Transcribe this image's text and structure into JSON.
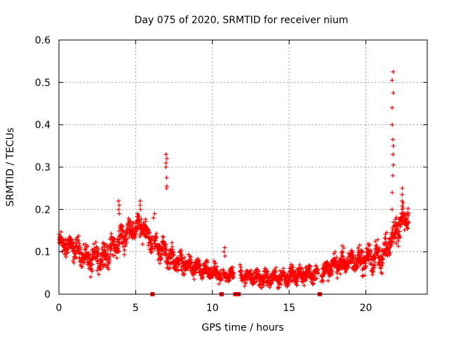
{
  "chart_data": {
    "type": "scatter",
    "title": "Day 075 of 2020, SRMTID for receiver nium",
    "xlabel": "GPS time / hours",
    "ylabel": "SRMTID / TECUs",
    "xlim": [
      0,
      24
    ],
    "ylim": [
      0,
      0.6
    ],
    "xticks": [
      0,
      5,
      10,
      15,
      20
    ],
    "xtick_labels": [
      "0",
      "5",
      "10",
      "15",
      "20"
    ],
    "yticks": [
      0,
      0.1,
      0.2,
      0.3,
      0.4,
      0.5,
      0.6
    ],
    "ytick_labels": [
      "0",
      "0.1",
      "0.2",
      "0.3",
      "0.4",
      "0.5",
      "0.6"
    ],
    "grid": true,
    "marker": "plus",
    "color": "#ff0000",
    "gap_markers_x": [
      6.1,
      10.6,
      11.5,
      11.7,
      17.0
    ],
    "segments": [
      {
        "x0": 0.0,
        "x1": 1.0,
        "y0": 0.12,
        "y1": 0.11,
        "spread": 0.035
      },
      {
        "x0": 1.0,
        "x1": 2.0,
        "y0": 0.11,
        "y1": 0.08,
        "spread": 0.035
      },
      {
        "x0": 2.0,
        "x1": 3.0,
        "y0": 0.08,
        "y1": 0.09,
        "spread": 0.04
      },
      {
        "x0": 3.0,
        "x1": 3.8,
        "y0": 0.09,
        "y1": 0.12,
        "spread": 0.04
      },
      {
        "x0": 3.8,
        "x1": 4.5,
        "y0": 0.12,
        "y1": 0.15,
        "spread": 0.04
      },
      {
        "x0": 4.5,
        "x1": 5.5,
        "y0": 0.15,
        "y1": 0.16,
        "spread": 0.035
      },
      {
        "x0": 5.5,
        "x1": 6.1,
        "y0": 0.16,
        "y1": 0.12,
        "spread": 0.035
      },
      {
        "x0": 6.2,
        "x1": 7.5,
        "y0": 0.12,
        "y1": 0.08,
        "spread": 0.035
      },
      {
        "x0": 7.5,
        "x1": 9.0,
        "y0": 0.08,
        "y1": 0.06,
        "spread": 0.03
      },
      {
        "x0": 9.0,
        "x1": 10.6,
        "y0": 0.06,
        "y1": 0.045,
        "spread": 0.025
      },
      {
        "x0": 10.7,
        "x1": 11.4,
        "y0": 0.045,
        "y1": 0.045,
        "spread": 0.02
      },
      {
        "x0": 11.8,
        "x1": 13.5,
        "y0": 0.045,
        "y1": 0.035,
        "spread": 0.025
      },
      {
        "x0": 13.5,
        "x1": 15.5,
        "y0": 0.035,
        "y1": 0.045,
        "spread": 0.025
      },
      {
        "x0": 15.5,
        "x1": 16.9,
        "y0": 0.045,
        "y1": 0.05,
        "spread": 0.025
      },
      {
        "x0": 17.1,
        "x1": 18.0,
        "y0": 0.05,
        "y1": 0.07,
        "spread": 0.03
      },
      {
        "x0": 18.0,
        "x1": 19.5,
        "y0": 0.07,
        "y1": 0.08,
        "spread": 0.035
      },
      {
        "x0": 19.5,
        "x1": 21.0,
        "y0": 0.08,
        "y1": 0.09,
        "spread": 0.04
      },
      {
        "x0": 21.0,
        "x1": 22.0,
        "y0": 0.09,
        "y1": 0.15,
        "spread": 0.045
      },
      {
        "x0": 22.0,
        "x1": 22.8,
        "y0": 0.15,
        "y1": 0.19,
        "spread": 0.04
      }
    ],
    "spikes": [
      {
        "x": 3.9,
        "values": [
          0.2,
          0.21,
          0.22,
          0.19
        ]
      },
      {
        "x": 5.3,
        "values": [
          0.21,
          0.2,
          0.22
        ]
      },
      {
        "x": 6.2,
        "values": [
          0.18,
          0.19
        ]
      },
      {
        "x": 7.0,
        "values": [
          0.33,
          0.32,
          0.31,
          0.3,
          0.275,
          0.25,
          0.255
        ]
      },
      {
        "x": 10.8,
        "values": [
          0.11,
          0.1,
          0.09
        ]
      },
      {
        "x": 21.75,
        "values": [
          0.525,
          0.505,
          0.475,
          0.44,
          0.4,
          0.365,
          0.35,
          0.33,
          0.305,
          0.28,
          0.24,
          0.2
        ]
      },
      {
        "x": 22.4,
        "values": [
          0.25,
          0.235,
          0.22,
          0.2
        ]
      }
    ]
  }
}
